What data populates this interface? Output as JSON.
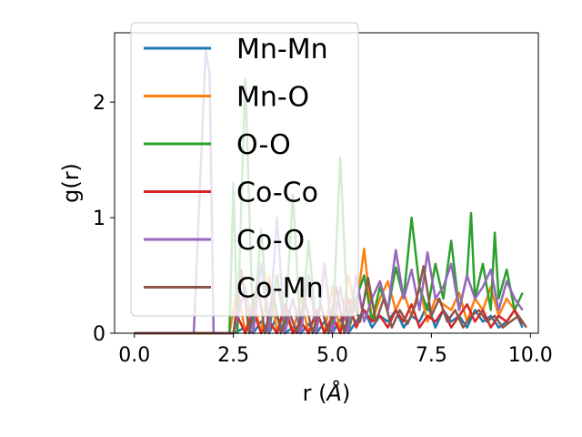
{
  "chart_data": {
    "type": "line",
    "xlabel": "r (",
    "xlabel_unit": "Å",
    "xlabel_close": ")",
    "ylabel": "g(r)",
    "xlim": [
      -0.5,
      10.2
    ],
    "ylim": [
      0,
      2.6
    ],
    "xticks": [
      0.0,
      2.5,
      5.0,
      7.5,
      10.0
    ],
    "xtick_labels": [
      "0.0",
      "2.5",
      "5.0",
      "7.5",
      "10.0"
    ],
    "yticks": [
      0,
      1,
      2
    ],
    "ytick_labels": [
      "0",
      "1",
      "2"
    ],
    "grid": false,
    "legend_position": "upper-left",
    "series": [
      {
        "name": "Mn-Mn",
        "color": "#1f77b4",
        "x": [
          0,
          0.5,
          1,
          1.5,
          2,
          2.5,
          2.8,
          3.0,
          3.2,
          3.4,
          3.6,
          3.8,
          4.0,
          4.2,
          4.4,
          4.6,
          4.8,
          5.0,
          5.2,
          5.4,
          5.6,
          5.8,
          6.0,
          6.2,
          6.4,
          6.6,
          6.8,
          7.0,
          7.2,
          7.4,
          7.6,
          7.8,
          8.0,
          8.2,
          8.4,
          8.6,
          8.8,
          9.0,
          9.2,
          9.4,
          9.6,
          9.8
        ],
        "y": [
          0,
          0,
          0,
          0,
          0,
          0,
          0.05,
          0,
          0.1,
          0,
          0.15,
          0,
          0.05,
          0,
          0.08,
          0,
          0.1,
          0,
          0.12,
          0,
          0.1,
          0.2,
          0.05,
          0.15,
          0.1,
          0.2,
          0.05,
          0.15,
          0.1,
          0.25,
          0.05,
          0.2,
          0.1,
          0.15,
          0.05,
          0.2,
          0.1,
          0.15,
          0.05,
          0.1,
          0.2,
          0.05
        ]
      },
      {
        "name": "Mn-O",
        "color": "#ff7f0e",
        "x": [
          0,
          0.5,
          1,
          1.5,
          2,
          2.4,
          2.6,
          2.8,
          3.0,
          3.2,
          3.4,
          3.6,
          3.8,
          4.0,
          4.2,
          4.4,
          4.6,
          4.8,
          5.0,
          5.2,
          5.4,
          5.6,
          5.8,
          6.0,
          6.2,
          6.4,
          6.6,
          6.8,
          7.0,
          7.2,
          7.4,
          7.6,
          7.8,
          8.0,
          8.2,
          8.4,
          8.6,
          8.8,
          9.0,
          9.2,
          9.4,
          9.6,
          9.8
        ],
        "y": [
          0,
          0,
          0,
          0,
          0,
          0,
          0.4,
          0,
          0.3,
          0,
          0.5,
          0,
          0.2,
          0,
          0.3,
          0,
          0.2,
          0,
          0.4,
          0,
          0.5,
          0.2,
          0.73,
          0.1,
          0.3,
          0.45,
          0.2,
          0.35,
          0.15,
          0.4,
          0.1,
          0.3,
          0.25,
          0.2,
          0.35,
          0.1,
          0.3,
          0.2,
          0.4,
          0.15,
          0.3,
          0.2,
          0.1
        ]
      },
      {
        "name": "O-O",
        "color": "#2ca02c",
        "x": [
          0,
          0.5,
          1,
          1.5,
          2,
          2.4,
          2.5,
          2.6,
          2.8,
          3.0,
          3.2,
          3.4,
          3.6,
          3.8,
          4.0,
          4.2,
          4.4,
          4.6,
          4.8,
          5.0,
          5.2,
          5.4,
          5.6,
          5.8,
          6.0,
          6.2,
          6.4,
          6.6,
          6.8,
          7.0,
          7.2,
          7.4,
          7.6,
          7.8,
          8.0,
          8.2,
          8.4,
          8.5,
          8.6,
          8.8,
          9.0,
          9.1,
          9.2,
          9.4,
          9.6,
          9.8
        ],
        "y": [
          0,
          0,
          0,
          0,
          0,
          0,
          1.3,
          0,
          2.2,
          0,
          0.9,
          0,
          0.5,
          0,
          1.2,
          0,
          0.8,
          0,
          0.6,
          0,
          1.52,
          0,
          0.3,
          0.5,
          0.1,
          0.4,
          0.2,
          0.57,
          0.3,
          1.0,
          0.4,
          0.2,
          0.6,
          0.3,
          0.8,
          0.2,
          0.5,
          1.04,
          0.3,
          0.6,
          0.2,
          0.87,
          0.3,
          0.55,
          0.2,
          0.35
        ]
      },
      {
        "name": "Co-Co",
        "color": "#d62728",
        "x": [
          0,
          0.5,
          1,
          1.5,
          2,
          2.5,
          2.6,
          2.8,
          3.0,
          3.2,
          3.4,
          3.6,
          3.8,
          4.0,
          4.2,
          4.4,
          4.6,
          4.8,
          5.0,
          5.2,
          5.4,
          5.6,
          5.8,
          6.0,
          6.2,
          6.4,
          6.6,
          6.8,
          7.0,
          7.2,
          7.4,
          7.6,
          7.8,
          8.0,
          8.2,
          8.4,
          8.6,
          8.8,
          9.0,
          9.2,
          9.4,
          9.6,
          9.8
        ],
        "y": [
          0,
          0,
          0,
          0,
          0,
          0,
          0.15,
          0,
          0.2,
          0,
          0.1,
          0,
          0.25,
          0,
          0.1,
          0,
          0.2,
          0,
          0.15,
          0,
          0.3,
          0.05,
          0.2,
          0.1,
          0.15,
          0.05,
          0.2,
          0.1,
          0.25,
          0.05,
          0.15,
          0.1,
          0.2,
          0.05,
          0.15,
          0.25,
          0.1,
          0.2,
          0.05,
          0.15,
          0.1,
          0.2,
          0.08
        ]
      },
      {
        "name": "Co-O",
        "color": "#9467bd",
        "x": [
          0,
          0.5,
          1,
          1.5,
          1.8,
          1.9,
          2.0,
          2.2,
          2.5,
          2.8,
          3.0,
          3.2,
          3.4,
          3.6,
          3.8,
          4.0,
          4.2,
          4.4,
          4.6,
          4.8,
          5.0,
          5.2,
          5.4,
          5.6,
          5.8,
          6.0,
          6.2,
          6.4,
          6.6,
          6.8,
          7.0,
          7.2,
          7.4,
          7.6,
          7.8,
          8.0,
          8.2,
          8.4,
          8.6,
          8.8,
          9.0,
          9.2,
          9.4,
          9.6,
          9.8
        ],
        "y": [
          0,
          0,
          0,
          0,
          2.45,
          2.25,
          0,
          0,
          0,
          0.4,
          0,
          0.6,
          0,
          1.0,
          0,
          0.3,
          0,
          0.5,
          0,
          0.6,
          0,
          0.4,
          0,
          0.5,
          0.1,
          0.3,
          0.45,
          0.2,
          0.72,
          0.3,
          0.55,
          0.2,
          0.7,
          0.3,
          0.4,
          0.6,
          0.2,
          0.5,
          0.3,
          0.4,
          0.55,
          0.2,
          0.45,
          0.3,
          0.2
        ]
      },
      {
        "name": "Co-Mn",
        "color": "#8c564b",
        "x": [
          0,
          0.5,
          1,
          1.5,
          2,
          2.5,
          2.7,
          2.9,
          3.1,
          3.3,
          3.5,
          3.7,
          3.9,
          4.1,
          4.3,
          4.5,
          4.7,
          4.9,
          5.1,
          5.3,
          5.5,
          5.7,
          5.9,
          6.1,
          6.3,
          6.5,
          6.7,
          6.9,
          7.1,
          7.3,
          7.5,
          7.7,
          7.9,
          8.1,
          8.3,
          8.5,
          8.7,
          8.9,
          9.1,
          9.3,
          9.5,
          9.7,
          9.9
        ],
        "y": [
          0,
          0,
          0,
          0,
          0,
          0,
          0.55,
          0,
          0.45,
          0,
          0.35,
          0,
          0.2,
          0,
          0.3,
          0,
          0.25,
          0,
          0.4,
          0,
          0.3,
          0.1,
          0.48,
          0.1,
          0.3,
          0.05,
          0.2,
          0.08,
          0.25,
          0.58,
          0.15,
          0.3,
          0.1,
          0.2,
          0.05,
          0.15,
          0.2,
          0.1,
          0.15,
          0.05,
          0.1,
          0.15,
          0.05
        ]
      }
    ]
  }
}
